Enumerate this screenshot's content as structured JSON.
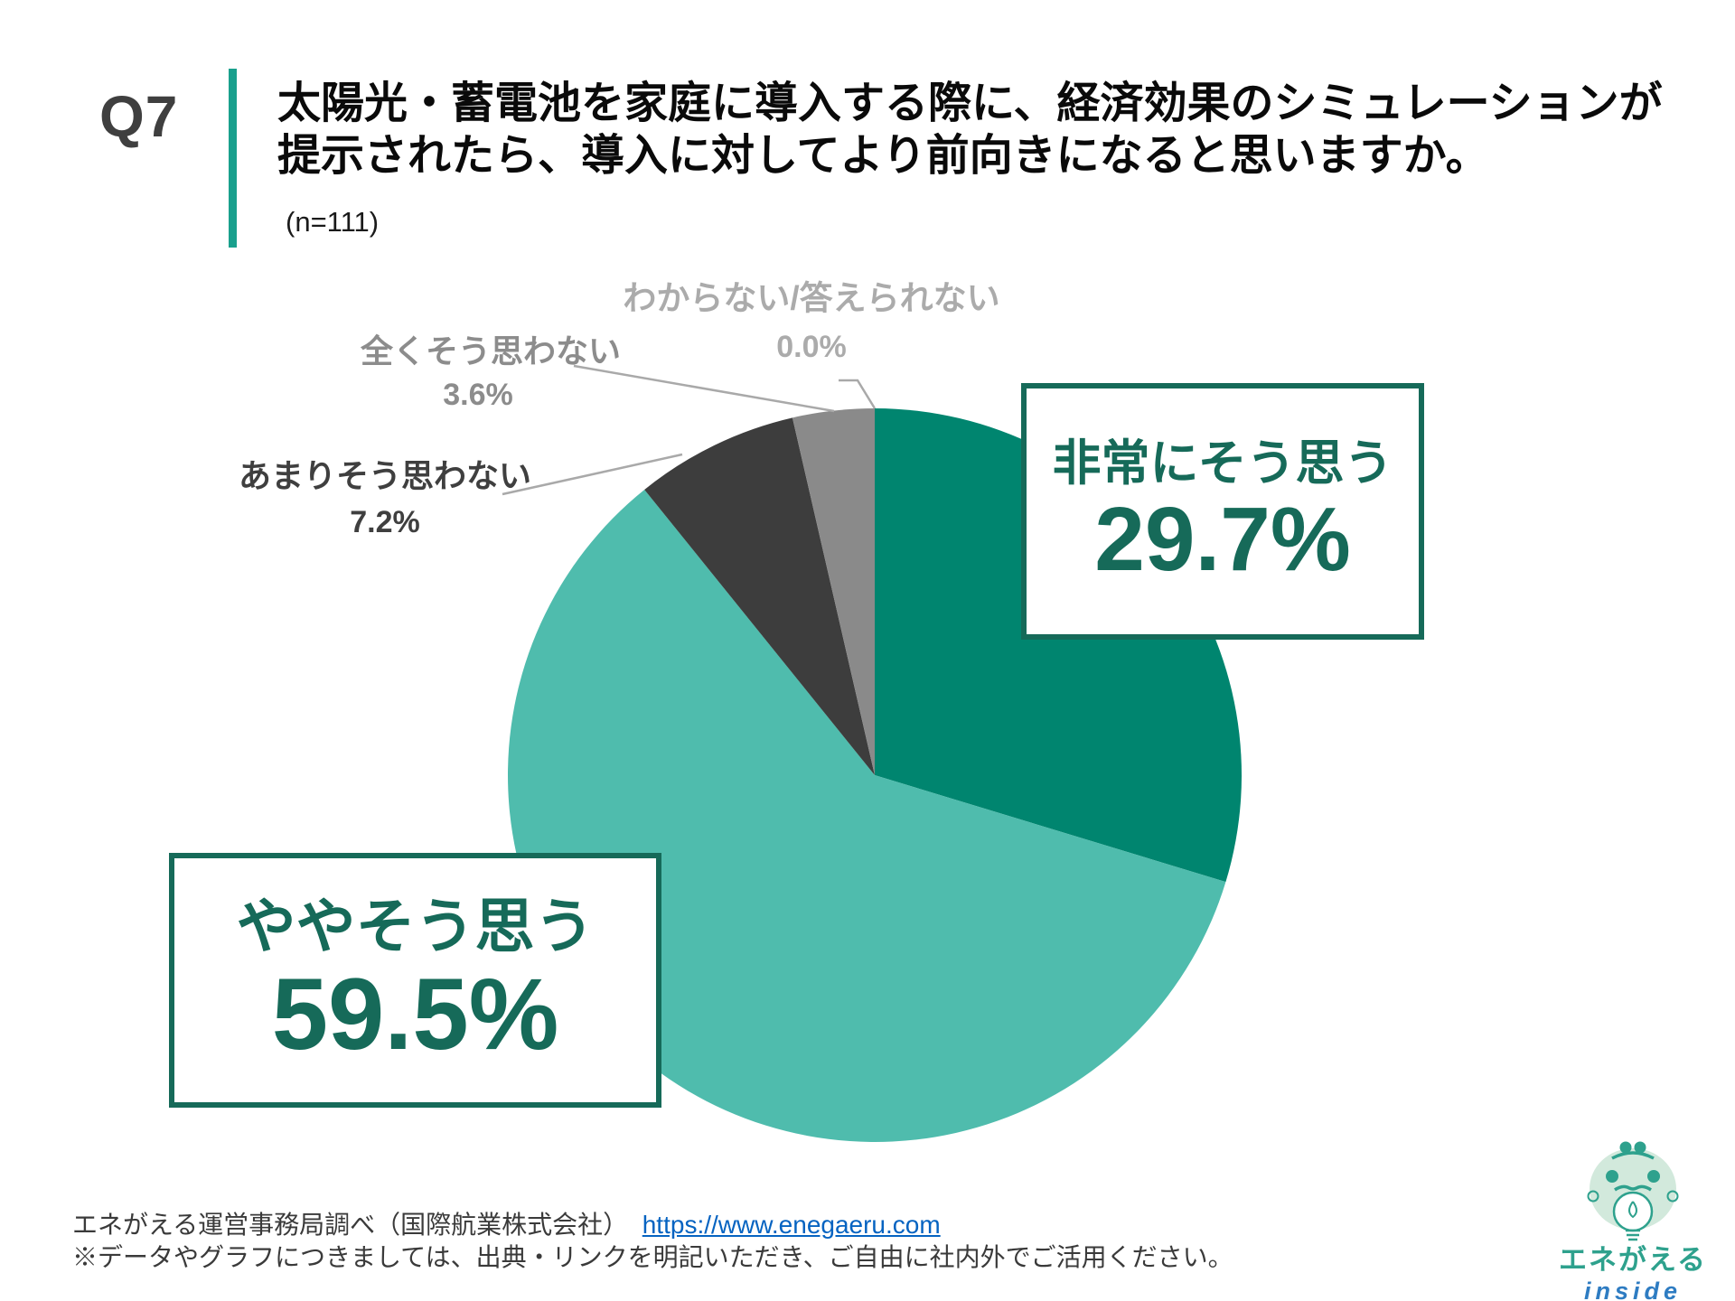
{
  "header": {
    "question_number": "Q7",
    "title_line1": "太陽光・蓄電池を家庭に導入する際に、経済効果のシミュレーションが",
    "title_line2": "提示されたら、導入に対してより前向きになると思いますか。",
    "sample_size": "(n=111)"
  },
  "chart_data": {
    "type": "pie",
    "title": "太陽光・蓄電池を家庭に導入する際に、経済効果のシミュレーションが提示されたら、導入に対してより前向きになると思いますか。",
    "n_label": "(n=111)",
    "start_angle_deg": 0,
    "direction": "clockwise",
    "legend_position": "callouts-and-leader-labels",
    "slices": [
      {
        "label": "非常にそう思う",
        "value": 29.7,
        "display": "29.7%",
        "color": "#00856f"
      },
      {
        "label": "ややそう思う",
        "value": 59.5,
        "display": "59.5%",
        "color": "#4fbcad"
      },
      {
        "label": "あまりそう思わない",
        "value": 7.2,
        "display": "7.2%",
        "color": "#3d3d3d"
      },
      {
        "label": "全くそう思わない",
        "value": 3.6,
        "display": "3.6%",
        "color": "#8a8a8a"
      },
      {
        "label": "わからない/答えられない",
        "value": 0.0,
        "display": "0.0%",
        "color": "#ababab"
      }
    ]
  },
  "footer": {
    "source_text": "エネがえる運営事務局調べ（国際航業株式会社）",
    "source_link": "https://www.enegaeru.com",
    "note": "※データやグラフにつきましては、出典・リンクを明記いただき、ご自由に社内外でご活用ください。"
  },
  "logo": {
    "brand": "エネがえる",
    "sub": "inside"
  },
  "colors": {
    "accent_teal_dark": "#00856f",
    "accent_teal_light": "#4fbcad",
    "callout_teal": "#166a59",
    "accent_bar": "#19a08d",
    "link_blue": "#0563c1",
    "leader_gray": "#a9a9a9"
  }
}
